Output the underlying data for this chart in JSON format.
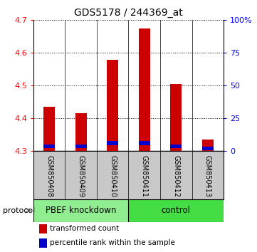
{
  "title": "GDS5178 / 244369_at",
  "categories": [
    "GSM850408",
    "GSM850409",
    "GSM850410",
    "GSM850411",
    "GSM850412",
    "GSM850413"
  ],
  "red_values": [
    4.435,
    4.415,
    4.578,
    4.675,
    4.505,
    4.335
  ],
  "blue_values": [
    4.315,
    4.315,
    4.325,
    4.325,
    4.315,
    4.308
  ],
  "red_base": 4.3,
  "ylim": [
    4.3,
    4.7
  ],
  "yticks_left": [
    4.3,
    4.4,
    4.5,
    4.6,
    4.7
  ],
  "yticks_right": [
    0,
    25,
    50,
    75,
    100
  ],
  "ytick_labels_right": [
    "0",
    "25",
    "50",
    "75",
    "100%"
  ],
  "groups": [
    {
      "label": "PBEF knockdown",
      "indices": [
        0,
        1,
        2
      ],
      "color": "#90EE90"
    },
    {
      "label": "control",
      "indices": [
        3,
        4,
        5
      ],
      "color": "#44DD44"
    }
  ],
  "protocol_label": "protocol",
  "legend_red": "transformed count",
  "legend_blue": "percentile rank within the sample",
  "bar_width": 0.35,
  "red_color": "#CC0000",
  "blue_color": "#0000CC",
  "label_bg": "#C8C8C8",
  "blue_bar_height": 0.012
}
